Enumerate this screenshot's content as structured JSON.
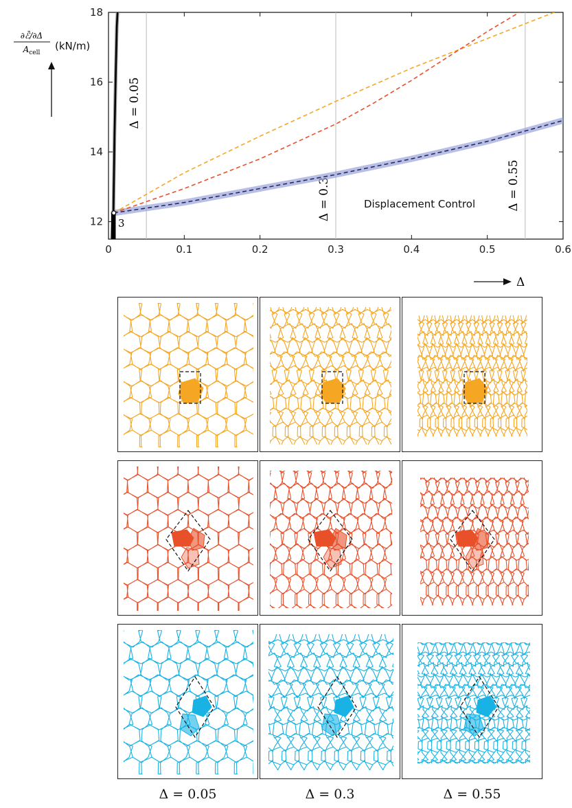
{
  "chart_data": {
    "type": "line",
    "xlim": [
      0,
      0.6
    ],
    "ylim": [
      11.5,
      18
    ],
    "x_ticks": [
      "0",
      "0.1",
      "0.2",
      "0.3",
      "0.4",
      "0.5",
      "0.6"
    ],
    "y_ticks": [
      "12",
      "14",
      "16",
      "18"
    ],
    "x_tick_values": [
      0,
      0.1,
      0.2,
      0.3,
      0.4,
      0.5,
      0.6
    ],
    "y_tick_values": [
      12,
      14,
      16,
      18
    ],
    "xlabel": "Δ",
    "ylabel": "(kN/m)",
    "grid": false,
    "vertical_lines": [
      {
        "x": 0.05,
        "label": "Δ = 0.05"
      },
      {
        "x": 0.3,
        "label": "Δ = 0.3"
      },
      {
        "x": 0.55,
        "label": "Δ = 0.55"
      }
    ],
    "annotation_text": "Displacement Control",
    "point_label": "3",
    "series": [
      {
        "color": "#000000",
        "x": [
          0.0045,
          0.0065,
          0.008,
          0.0095,
          0.011,
          0.012
        ],
        "y": [
          11.5,
          12.3,
          14.5,
          16.2,
          17.6,
          18
        ]
      },
      {
        "color": "#f5a623",
        "x": [
          0.007,
          0.1,
          0.2,
          0.3,
          0.4,
          0.5,
          0.6
        ],
        "y": [
          12.25,
          13.4,
          14.45,
          15.45,
          16.4,
          17.25,
          18.1
        ]
      },
      {
        "color": "#e8502a",
        "x": [
          0.007,
          0.1,
          0.2,
          0.3,
          0.35,
          0.4,
          0.45,
          0.5,
          0.55
        ],
        "y": [
          12.25,
          12.95,
          13.8,
          14.8,
          15.4,
          16.05,
          16.75,
          17.45,
          18.1
        ]
      },
      {
        "color": "#2a2a5a",
        "x": [
          0.007,
          0.1,
          0.2,
          0.3,
          0.4,
          0.5,
          0.6
        ],
        "y": [
          12.25,
          12.55,
          12.95,
          13.35,
          13.8,
          14.3,
          14.9
        ]
      }
    ]
  },
  "colors": {
    "orange": "#f5a623",
    "red": "#e8502a",
    "blue": "#18b2e4",
    "blue_band": "#9aa4dd"
  },
  "captions": [
    "Δ = 0.05",
    "Δ = 0.3",
    "Δ = 0.55"
  ]
}
